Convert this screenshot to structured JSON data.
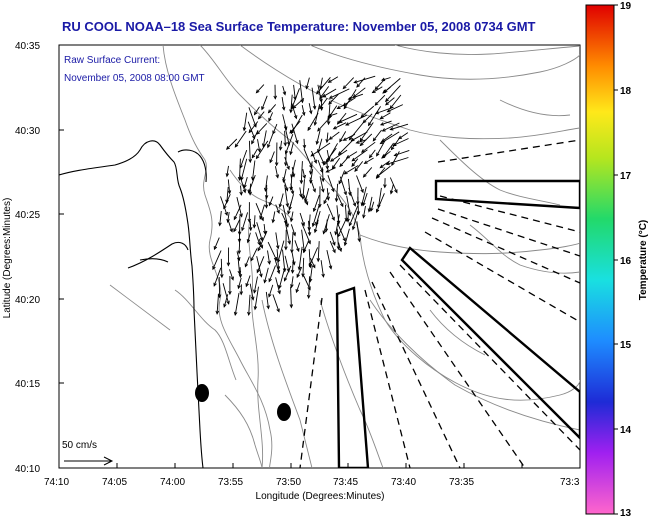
{
  "title": "RU COOL  NOAA–18  Sea Surface Temperature:  November 05, 2008 0734 GMT",
  "overlay": {
    "line1": "Raw Surface Current:",
    "line2": "November 05, 2008 08:00 GMT"
  },
  "axes": {
    "xlabel": "Longitude (Degrees:Minutes)",
    "ylabel": "Latitude (Degrees:Minutes)",
    "x_ticks": [
      "74:10",
      "74:05",
      "74:00",
      "73:55",
      "73:50",
      "73:45",
      "73:40",
      "73:35",
      "73:3"
    ],
    "y_ticks": [
      "40:35",
      "40:30",
      "40:25",
      "40:20",
      "40:15",
      "40:10"
    ],
    "xlim_min": [
      -74.1667,
      -73.5
    ],
    "ylim_min": [
      40.1667,
      40.5833
    ]
  },
  "scale": {
    "label": "50 cm/s"
  },
  "colorbar": {
    "title": "Temperature (°C)",
    "ticks": [
      "19",
      "18",
      "17",
      "16",
      "15",
      "14",
      "13"
    ],
    "range": [
      13,
      19
    ]
  },
  "legend_colors": {
    "text": "#1a1aa6",
    "frame": "#000000",
    "contour": "#8a8a8a"
  },
  "chart_data": {
    "type": "vector-map",
    "title": "RU COOL  NOAA–18  Sea Surface Temperature:  November 05, 2008 0734 GMT",
    "xlabel": "Longitude (Degrees:Minutes)",
    "ylabel": "Latitude (Degrees:Minutes)",
    "vector_units": "cm/s",
    "reference_vector": 50,
    "approx_flow": "predominantly southward surface current off the New Jersey coast / Hudson Canyon"
  }
}
